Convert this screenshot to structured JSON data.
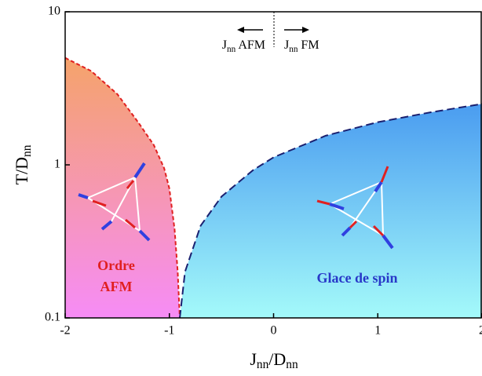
{
  "chart_data": {
    "type": "area-boundary",
    "x_label": [
      "J",
      "nn",
      "/D",
      "nn"
    ],
    "y_label": [
      "T/D",
      "nn"
    ],
    "xlim": [
      -2,
      2
    ],
    "xticks": [
      -2,
      -1,
      0,
      1,
      2
    ],
    "ylim": [
      0.1,
      10
    ],
    "yticks": [
      0.1,
      1,
      10
    ],
    "log_y": true,
    "series": [
      {
        "color": "#e02020",
        "fill_gradient": [
          "#f5a36a",
          "#f68cf6"
        ],
        "x": [
          -2,
          -1.75,
          -1.5,
          -1.3,
          -1.15,
          -1.05,
          -1,
          -0.95,
          -0.92,
          -0.9
        ],
        "values": [
          5,
          4.1,
          2.9,
          1.9,
          1.35,
          0.95,
          0.7,
          0.38,
          0.2,
          0.1
        ]
      },
      {
        "color": "#1a2070",
        "fill_gradient": [
          "#4a9cf0",
          "#a4fafa"
        ],
        "x": [
          -0.9,
          -0.85,
          -0.7,
          -0.5,
          -0.2,
          0,
          0.5,
          1,
          1.5,
          2
        ],
        "values": [
          0.1,
          0.2,
          0.4,
          0.62,
          0.92,
          1.12,
          1.55,
          1.9,
          2.2,
          2.5
        ]
      }
    ],
    "annotations": {
      "afm_direction": [
        "J",
        "nn",
        " AFM"
      ],
      "fm_direction": [
        "J",
        "nn",
        " FM"
      ],
      "afm_phase": [
        "Ordre",
        "AFM"
      ],
      "spin_ice_phase": "Glace de spin"
    }
  }
}
